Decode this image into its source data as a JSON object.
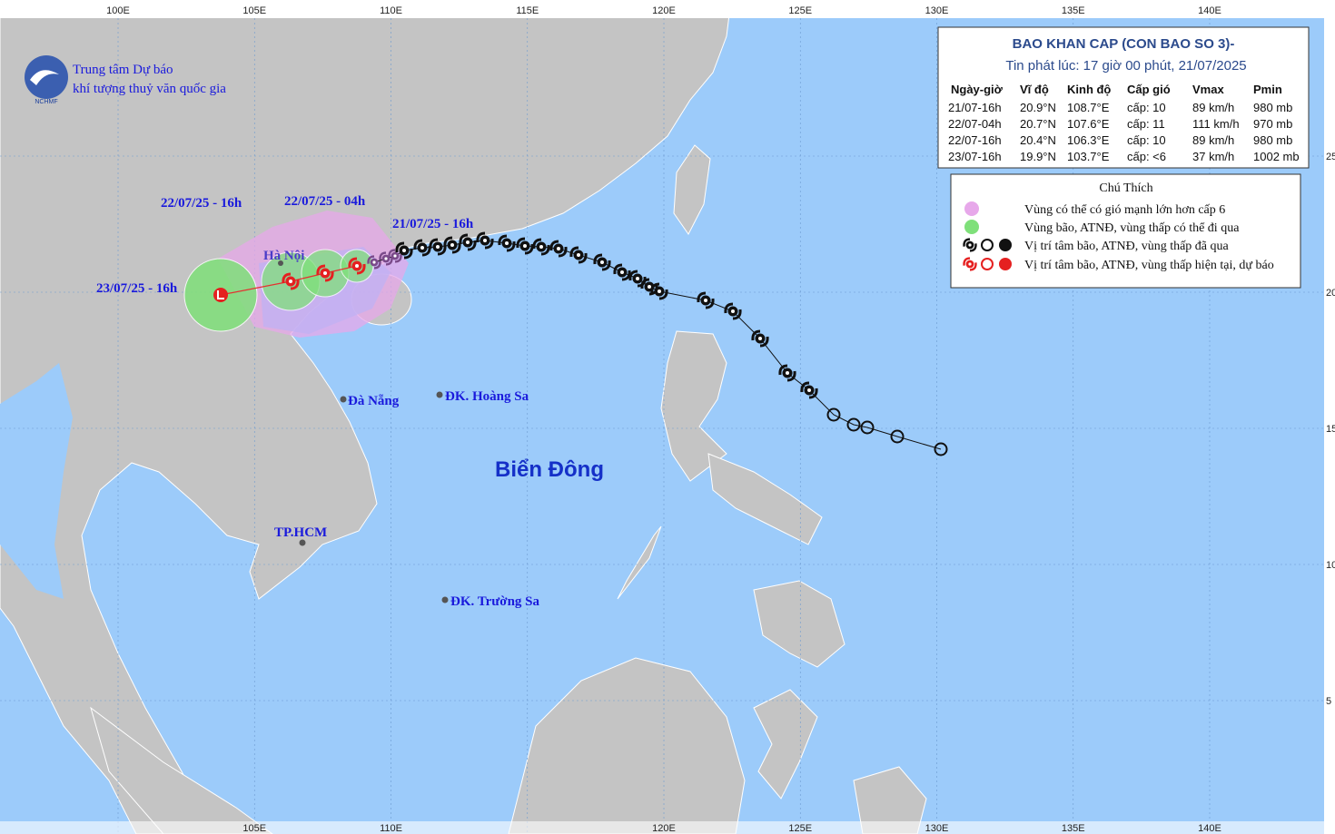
{
  "header": {
    "org_line1": "Trung tâm Dự báo",
    "org_line2": "khí tượng thuỷ văn quốc gia",
    "logo_text": "NCHMF"
  },
  "axes": {
    "top": [
      "100E",
      "105E",
      "110E",
      "115E",
      "120E",
      "125E",
      "130E",
      "135E",
      "140E"
    ],
    "bottom": [
      "105E",
      "110E",
      "120E",
      "125E",
      "130E",
      "135E",
      "140E"
    ],
    "right": [
      "25",
      "20",
      "15",
      "10",
      "5"
    ]
  },
  "bulletin": {
    "title": "BAO KHAN CAP (CON BAO SO 3)-",
    "issued": "Tin phát lúc: 17 giờ 00 phút, 21/07/2025",
    "columns": [
      "Ngày-giờ",
      "Vĩ độ",
      "Kinh độ",
      "Cấp gió",
      "Vmax",
      "Pmin"
    ],
    "rows": [
      [
        "21/07-16h",
        "20.9°N",
        "108.7°E",
        "cấp: 10",
        "89 km/h",
        "980 mb"
      ],
      [
        "22/07-04h",
        "20.7°N",
        "107.6°E",
        "cấp: 11",
        "111 km/h",
        "970 mb"
      ],
      [
        "22/07-16h",
        "20.4°N",
        "106.3°E",
        "cấp: 10",
        "89 km/h",
        "980 mb"
      ],
      [
        "23/07-16h",
        "19.9°N",
        "103.7°E",
        "cấp: <6",
        "37 km/h",
        "1002 mb"
      ]
    ]
  },
  "legend": {
    "title": "Chú Thích",
    "items": [
      "Vùng có thể có gió mạnh lớn hơn cấp 6",
      "Vùng bão, ATNĐ, vùng thấp có thể đi qua",
      "Vị trí tâm bão, ATNĐ, vùng thấp đã qua",
      "Vị trí tâm bão, ATNĐ, vùng thấp hiện tại, dự báo"
    ]
  },
  "map_labels": {
    "dates": [
      "22/07/25 - 16h",
      "22/07/25 - 04h",
      "21/07/25 - 16h",
      "23/07/25 - 16h"
    ],
    "places": [
      "Hà Nội",
      "Đà Nẵng",
      "ĐK. Hoàng Sa",
      "TP.HCM",
      "ĐK. Trường Sa"
    ],
    "sea": "Biển Đông"
  }
}
